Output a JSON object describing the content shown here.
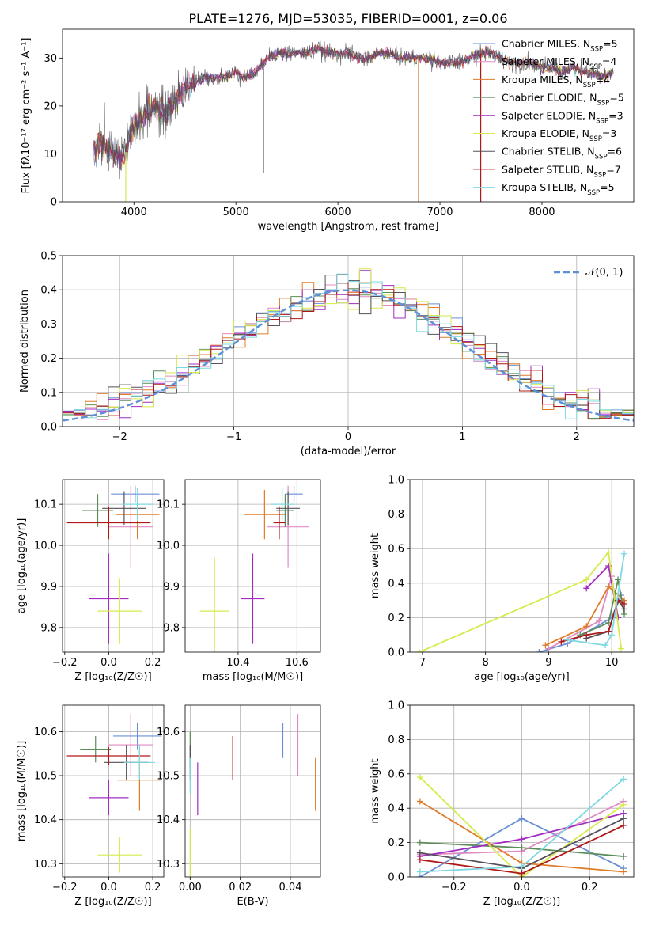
{
  "figure": {
    "title": "PLATE=1276, MJD=53035, FIBERID=0001, z=0.06"
  },
  "models": [
    {
      "name": "Chabrier MILES",
      "nssp": "5",
      "color": "#6b8fd6"
    },
    {
      "name": "Salpeter MILES",
      "nssp": "4",
      "color": "#e08ac4"
    },
    {
      "name": "Kroupa MILES",
      "nssp": "4",
      "color": "#e07b28"
    },
    {
      "name": "Chabrier ELODIE",
      "nssp": "5",
      "color": "#5b8c5a"
    },
    {
      "name": "Salpeter ELODIE",
      "nssp": "3",
      "color": "#a22cc1"
    },
    {
      "name": "Kroupa ELODIE",
      "nssp": "3",
      "color": "#d6ea4a"
    },
    {
      "name": "Chabrier STELIB",
      "nssp": "6",
      "color": "#55505a"
    },
    {
      "name": "Salpeter STELIB",
      "nssp": "7",
      "color": "#b01818"
    },
    {
      "name": "Kroupa STELIB",
      "nssp": "5",
      "color": "#7dd8e2"
    }
  ],
  "chart_data": [
    {
      "id": "spectrum",
      "type": "line",
      "xlabel": "wavelength [Angstrom, rest frame]",
      "ylabel": "Flux [fλ10⁻¹⁷ erg cm⁻² s⁻¹ A⁻¹]",
      "xlim": [
        3300,
        8900
      ],
      "ylim": [
        0,
        36
      ],
      "xticks": [
        4000,
        5000,
        6000,
        7000,
        8000
      ],
      "yticks": [
        0,
        10,
        20,
        30
      ],
      "legend_position": "right",
      "legend_suffix": "N",
      "legend_sub": "SSP",
      "legend_eq": "=",
      "continuum_x": [
        3600,
        3700,
        3800,
        3900,
        4000,
        4100,
        4200,
        4300,
        4400,
        4500,
        4600,
        4700,
        4800,
        4900,
        5000,
        5100,
        5200,
        5300,
        5400,
        5500,
        5600,
        5700,
        5800,
        5900,
        6000,
        6100,
        6200,
        6300,
        6400,
        6500,
        6600,
        6700,
        6800,
        6900,
        7000,
        7100,
        7200,
        7300,
        7400,
        7500,
        7600,
        7700,
        7800,
        7900,
        8000,
        8100,
        8200,
        8300,
        8400,
        8500,
        8600,
        8700
      ],
      "continuum_y": [
        11,
        12,
        10,
        9,
        16,
        18,
        20,
        18,
        21,
        24,
        25,
        26,
        26,
        26,
        27,
        26,
        27,
        30,
        31,
        31,
        31,
        31,
        32,
        31,
        31,
        31,
        30,
        30,
        31,
        31,
        30,
        30,
        30,
        30,
        29,
        29,
        29,
        30,
        31,
        31,
        30,
        29,
        29,
        29,
        28,
        28,
        27,
        28,
        27,
        27,
        26,
        27
      ],
      "noise_amplitude": 5,
      "spikes": [
        {
          "x": 3920,
          "y": 0,
          "color": "#d6ea4a"
        },
        {
          "x": 5270,
          "y": 6,
          "color": "#555555"
        },
        {
          "x": 6790,
          "y": 0,
          "color": "#e07b28"
        },
        {
          "x": 7400,
          "y": 0,
          "color": "#b01818"
        }
      ]
    },
    {
      "id": "residuals",
      "type": "histogram",
      "xlabel": "(data-model)/error",
      "ylabel": "Normed distribution",
      "xlim": [
        -2.5,
        2.5
      ],
      "ylim": [
        0,
        0.5
      ],
      "xticks": [
        -2,
        -1,
        0,
        1,
        2
      ],
      "yticks": [
        0,
        0.1,
        0.2,
        0.3,
        0.4,
        0.5
      ],
      "bin_width": 0.1,
      "gaussian_label": "𝒩(0, 1)",
      "gaussian_color": "#5f8fd6",
      "legend_position": "upper right"
    },
    {
      "id": "age_vs_Z",
      "type": "errorbar",
      "xlabel": "Z [log₁₀(Z/Z☉)]",
      "ylabel": "age  [log₁₀(age/yr)]",
      "xlim": [
        -0.21,
        0.25
      ],
      "ylim": [
        9.74,
        10.16
      ],
      "xticks": [
        -0.2,
        0.0,
        0.2
      ],
      "yticks": [
        9.8,
        9.9,
        10.0,
        10.1
      ],
      "points": [
        {
          "model": 0,
          "x": 0.12,
          "y": 10.125,
          "xerr": 0.11,
          "yerr": 0.02
        },
        {
          "model": 1,
          "x": 0.1,
          "y": 10.045,
          "xerr": 0.1,
          "yerr": 0.1
        },
        {
          "model": 2,
          "x": 0.13,
          "y": 10.075,
          "xerr": 0.1,
          "yerr": 0.06
        },
        {
          "model": 3,
          "x": -0.05,
          "y": 10.085,
          "xerr": 0.07,
          "yerr": 0.04
        },
        {
          "model": 4,
          "x": 0.0,
          "y": 9.87,
          "xerr": 0.09,
          "yerr": 0.11
        },
        {
          "model": 5,
          "x": 0.05,
          "y": 9.84,
          "xerr": 0.1,
          "yerr": 0.08
        },
        {
          "model": 6,
          "x": 0.07,
          "y": 10.09,
          "xerr": 0.1,
          "yerr": 0.04
        },
        {
          "model": 7,
          "x": 0.0,
          "y": 10.055,
          "xerr": 0.19,
          "yerr": 0.04
        },
        {
          "model": 8,
          "x": 0.13,
          "y": 10.1,
          "xerr": 0.07,
          "yerr": 0.04
        }
      ]
    },
    {
      "id": "age_vs_mass",
      "type": "errorbar",
      "xlabel": "mass [log₁₀(M/M☉)]",
      "ylabel": "",
      "xlim": [
        10.22,
        10.68
      ],
      "ylim": [
        9.74,
        10.16
      ],
      "xticks": [
        10.4,
        10.6
      ],
      "yticks": [
        9.8,
        9.9,
        10.0,
        10.1
      ],
      "points": [
        {
          "model": 0,
          "x": 10.59,
          "y": 10.125,
          "xerr": 0.03,
          "yerr": 0.02
        },
        {
          "model": 1,
          "x": 10.57,
          "y": 10.045,
          "xerr": 0.07,
          "yerr": 0.1
        },
        {
          "model": 2,
          "x": 10.49,
          "y": 10.075,
          "xerr": 0.07,
          "yerr": 0.06
        },
        {
          "model": 3,
          "x": 10.56,
          "y": 10.085,
          "xerr": 0.03,
          "yerr": 0.04
        },
        {
          "model": 4,
          "x": 10.45,
          "y": 9.87,
          "xerr": 0.04,
          "yerr": 0.11
        },
        {
          "model": 5,
          "x": 10.32,
          "y": 9.84,
          "xerr": 0.05,
          "yerr": 0.13
        },
        {
          "model": 6,
          "x": 10.57,
          "y": 10.09,
          "xerr": 0.04,
          "yerr": 0.04
        },
        {
          "model": 7,
          "x": 10.54,
          "y": 10.055,
          "xerr": 0.02,
          "yerr": 0.04
        },
        {
          "model": 8,
          "x": 10.55,
          "y": 10.1,
          "xerr": 0.04,
          "yerr": 0.04
        }
      ]
    },
    {
      "id": "mass_weight_vs_age",
      "type": "line",
      "xlabel": "age  [log₁₀(age/yr)]",
      "ylabel": "mass weight",
      "xlim": [
        6.8,
        10.35
      ],
      "ylim": [
        0,
        1.0
      ],
      "xticks": [
        7,
        8,
        9,
        10
      ],
      "yticks": [
        0.0,
        0.2,
        0.4,
        0.6,
        0.8,
        1.0
      ],
      "series": [
        {
          "model": 0,
          "x": [
            8.85,
            9.3,
            10.0,
            10.15
          ],
          "y": [
            0.0,
            0.05,
            0.2,
            0.33
          ]
        },
        {
          "model": 1,
          "x": [
            9.0,
            9.8,
            10.0,
            10.1
          ],
          "y": [
            0.02,
            0.18,
            0.44,
            0.2
          ]
        },
        {
          "model": 2,
          "x": [
            8.95,
            9.6,
            9.95,
            10.2
          ],
          "y": [
            0.04,
            0.15,
            0.38,
            0.3
          ]
        },
        {
          "model": 3,
          "x": [
            9.5,
            9.95,
            10.1,
            10.2
          ],
          "y": [
            0.1,
            0.17,
            0.42,
            0.22
          ]
        },
        {
          "model": 4,
          "x": [
            9.6,
            9.95,
            10.1
          ],
          "y": [
            0.37,
            0.5,
            0.2
          ]
        },
        {
          "model": 5,
          "x": [
            6.95,
            9.6,
            9.95,
            10.15
          ],
          "y": [
            0.0,
            0.42,
            0.58,
            0.02
          ]
        },
        {
          "model": 6,
          "x": [
            9.6,
            9.95,
            10.1,
            10.2
          ],
          "y": [
            0.08,
            0.12,
            0.3,
            0.25
          ]
        },
        {
          "model": 7,
          "x": [
            9.2,
            9.6,
            9.95,
            10.1,
            10.2
          ],
          "y": [
            0.06,
            0.1,
            0.12,
            0.3,
            0.28
          ]
        },
        {
          "model": 8,
          "x": [
            9.3,
            9.9,
            10.0,
            10.2
          ],
          "y": [
            0.07,
            0.04,
            0.1,
            0.57
          ]
        }
      ]
    },
    {
      "id": "mass_vs_Z",
      "type": "errorbar",
      "xlabel": "Z [log₁₀(Z/Z☉)]",
      "ylabel": "mass [log₁₀(M/M☉)]",
      "xlim": [
        -0.21,
        0.25
      ],
      "ylim": [
        10.27,
        10.66
      ],
      "xticks": [
        -0.2,
        0.0,
        0.2
      ],
      "yticks": [
        10.3,
        10.4,
        10.5,
        10.6
      ],
      "points": [
        {
          "model": 0,
          "x": 0.13,
          "y": 10.59,
          "xerr": 0.11,
          "yerr": 0.03
        },
        {
          "model": 1,
          "x": 0.1,
          "y": 10.57,
          "xerr": 0.1,
          "yerr": 0.07
        },
        {
          "model": 2,
          "x": 0.14,
          "y": 10.49,
          "xerr": 0.1,
          "yerr": 0.07
        },
        {
          "model": 3,
          "x": -0.06,
          "y": 10.56,
          "xerr": 0.07,
          "yerr": 0.03
        },
        {
          "model": 4,
          "x": 0.0,
          "y": 10.45,
          "xerr": 0.09,
          "yerr": 0.04
        },
        {
          "model": 5,
          "x": 0.05,
          "y": 10.32,
          "xerr": 0.1,
          "yerr": 0.04
        },
        {
          "model": 6,
          "x": 0.08,
          "y": 10.53,
          "xerr": 0.1,
          "yerr": 0.04
        },
        {
          "model": 7,
          "x": 0.0,
          "y": 10.545,
          "xerr": 0.19,
          "yerr": 0.02
        },
        {
          "model": 8,
          "x": 0.14,
          "y": 10.53,
          "xerr": 0.07,
          "yerr": 0.04
        }
      ]
    },
    {
      "id": "mass_vs_EBV",
      "type": "errorbar",
      "xlabel": "E(B-V)",
      "ylabel": "",
      "xlim": [
        -0.002,
        0.052
      ],
      "ylim": [
        10.27,
        10.66
      ],
      "xticks": [
        0.0,
        0.02,
        0.04
      ],
      "yticks": [
        10.3,
        10.4,
        10.5,
        10.6
      ],
      "points": [
        {
          "model": 0,
          "x": 0.037,
          "y": 10.58,
          "xerr": 0.0,
          "yerr": 0.04
        },
        {
          "model": 1,
          "x": 0.043,
          "y": 10.57,
          "xerr": 0.0,
          "yerr": 0.07
        },
        {
          "model": 2,
          "x": 0.05,
          "y": 10.48,
          "xerr": 0.0,
          "yerr": 0.06
        },
        {
          "model": 3,
          "x": 0.0,
          "y": 10.56,
          "xerr": 0.0,
          "yerr": 0.04
        },
        {
          "model": 4,
          "x": 0.003,
          "y": 10.47,
          "xerr": 0.0,
          "yerr": 0.06
        },
        {
          "model": 5,
          "x": 0.0,
          "y": 10.32,
          "xerr": 0.0,
          "yerr": 0.06
        },
        {
          "model": 6,
          "x": 0.0,
          "y": 10.53,
          "xerr": 0.0,
          "yerr": 0.04
        },
        {
          "model": 7,
          "x": 0.017,
          "y": 10.54,
          "xerr": 0.0,
          "yerr": 0.05
        },
        {
          "model": 8,
          "x": 0.0,
          "y": 10.5,
          "xerr": 0.0,
          "yerr": 0.04
        }
      ]
    },
    {
      "id": "mass_weight_vs_Z",
      "type": "line",
      "xlabel": "Z [log₁₀(Z/Z☉)]",
      "ylabel": "mass weight",
      "xlim": [
        -0.33,
        0.33
      ],
      "ylim": [
        0,
        1.0
      ],
      "xticks": [
        -0.2,
        0.0,
        0.2
      ],
      "yticks": [
        0.0,
        0.2,
        0.4,
        0.6,
        0.8,
        1.0
      ],
      "series": [
        {
          "model": 0,
          "x": [
            -0.3,
            0.0,
            0.3
          ],
          "y": [
            0.0,
            0.34,
            0.05
          ]
        },
        {
          "model": 1,
          "x": [
            -0.3,
            0.0,
            0.3
          ],
          "y": [
            0.13,
            0.15,
            0.44
          ]
        },
        {
          "model": 2,
          "x": [
            -0.3,
            0.0,
            0.3
          ],
          "y": [
            0.44,
            0.08,
            0.03
          ]
        },
        {
          "model": 3,
          "x": [
            -0.3,
            0.0,
            0.3
          ],
          "y": [
            0.2,
            0.17,
            0.12
          ]
        },
        {
          "model": 4,
          "x": [
            -0.3,
            0.0,
            0.3
          ],
          "y": [
            0.12,
            0.22,
            0.37
          ]
        },
        {
          "model": 5,
          "x": [
            -0.3,
            0.0,
            0.3
          ],
          "y": [
            0.58,
            0.0,
            0.42
          ]
        },
        {
          "model": 6,
          "x": [
            -0.3,
            0.0,
            0.3
          ],
          "y": [
            0.14,
            0.05,
            0.34
          ]
        },
        {
          "model": 7,
          "x": [
            -0.3,
            0.0,
            0.3
          ],
          "y": [
            0.1,
            0.02,
            0.3
          ]
        },
        {
          "model": 8,
          "x": [
            -0.3,
            0.0,
            0.3
          ],
          "y": [
            0.03,
            0.06,
            0.57
          ]
        }
      ]
    }
  ]
}
